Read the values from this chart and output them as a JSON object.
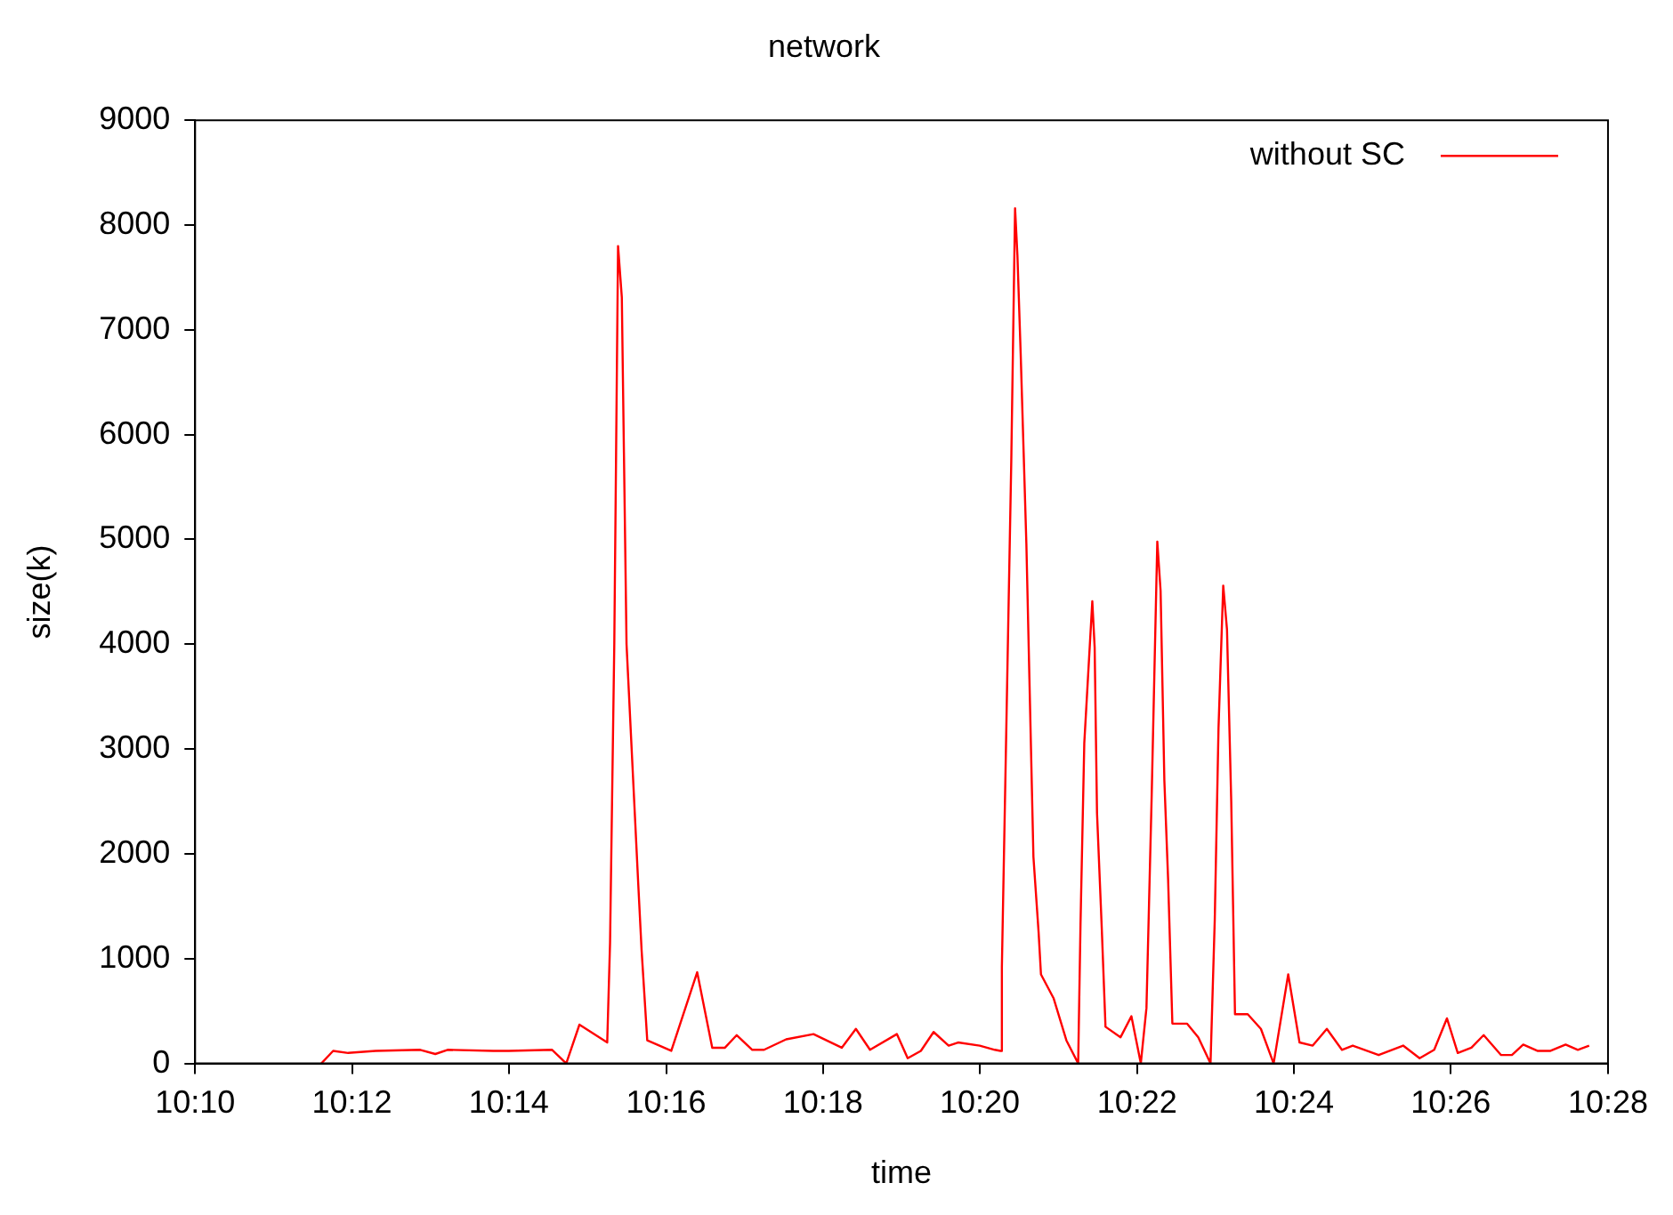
{
  "chart_data": {
    "type": "line",
    "title": "network",
    "xlabel": "time",
    "ylabel": "size(k)",
    "legend": "top right",
    "grid": false,
    "marker": "none",
    "line_style": "solid",
    "xlim": [
      10.1667,
      10.4667
    ],
    "xticks": [
      {
        "value": 10.1667,
        "label": "10:10"
      },
      {
        "value": 10.2,
        "label": "10:12"
      },
      {
        "value": 10.2333,
        "label": "10:14"
      },
      {
        "value": 10.2667,
        "label": "10:16"
      },
      {
        "value": 10.3,
        "label": "10:18"
      },
      {
        "value": 10.3333,
        "label": "10:20"
      },
      {
        "value": 10.3667,
        "label": "10:22"
      },
      {
        "value": 10.4,
        "label": "10:24"
      },
      {
        "value": 10.4333,
        "label": "10:26"
      },
      {
        "value": 10.4667,
        "label": "10:28"
      }
    ],
    "ylim": [
      0,
      9000
    ],
    "yticks": [
      0,
      1000,
      2000,
      3000,
      4000,
      5000,
      6000,
      7000,
      8000,
      9000
    ],
    "series": [
      {
        "name": "without SC",
        "color": "#ff0000",
        "x": [
          10.1935,
          10.196,
          10.1992,
          10.205,
          10.2145,
          10.2177,
          10.2203,
          10.23,
          10.2333,
          10.2425,
          10.2455,
          10.2483,
          10.2542,
          10.2548,
          10.2557,
          10.2565,
          10.2573,
          10.2583,
          10.2608,
          10.2615,
          10.2627,
          10.2678,
          10.2733,
          10.2765,
          10.2792,
          10.2817,
          10.285,
          10.2875,
          10.2922,
          10.298,
          10.304,
          10.307,
          10.31,
          10.3157,
          10.318,
          10.3208,
          10.3235,
          10.3267,
          10.3287,
          10.3333,
          10.3365,
          10.3377,
          10.338,
          10.34,
          10.3408,
          10.3413,
          10.342,
          10.3432,
          10.3447,
          10.3458,
          10.3463,
          10.349,
          10.3517,
          10.3542,
          10.3547,
          10.3555,
          10.3572,
          10.3577,
          10.3582,
          10.3592,
          10.36,
          10.3632,
          10.3655,
          10.3675,
          10.3687,
          10.3698,
          10.371,
          10.3717,
          10.3725,
          10.3733,
          10.3742,
          10.3773,
          10.3797,
          10.3823,
          10.3832,
          10.384,
          10.385,
          10.3858,
          10.3867,
          10.3875,
          10.3902,
          10.393,
          10.3957,
          10.3988,
          10.4012,
          10.404,
          10.407,
          10.4102,
          10.4125,
          10.418,
          10.4232,
          10.4267,
          10.4298,
          10.4325,
          10.4348,
          10.4377,
          10.4403,
          10.444,
          10.4463,
          10.4487,
          10.4517,
          10.4545,
          10.4577,
          10.4603,
          10.4627
        ],
        "values": [
          0,
          120,
          100,
          120,
          130,
          90,
          130,
          120,
          120,
          130,
          0,
          370,
          200,
          1150,
          4000,
          7800,
          7310,
          4000,
          1700,
          1080,
          220,
          120,
          870,
          150,
          150,
          270,
          130,
          130,
          230,
          280,
          150,
          330,
          130,
          280,
          50,
          120,
          300,
          170,
          200,
          170,
          130,
          120,
          920,
          5760,
          8160,
          7710,
          6760,
          4960,
          1970,
          1250,
          850,
          620,
          220,
          0,
          1340,
          3060,
          4410,
          3970,
          2390,
          1300,
          350,
          250,
          450,
          0,
          530,
          2540,
          4980,
          4510,
          2700,
          1750,
          380,
          380,
          250,
          0,
          1370,
          3200,
          4560,
          4140,
          2500,
          470,
          470,
          330,
          0,
          850,
          200,
          170,
          330,
          130,
          170,
          80,
          170,
          50,
          130,
          430,
          100,
          150,
          270,
          80,
          80,
          180,
          120,
          120,
          180,
          130,
          170
        ]
      }
    ]
  }
}
